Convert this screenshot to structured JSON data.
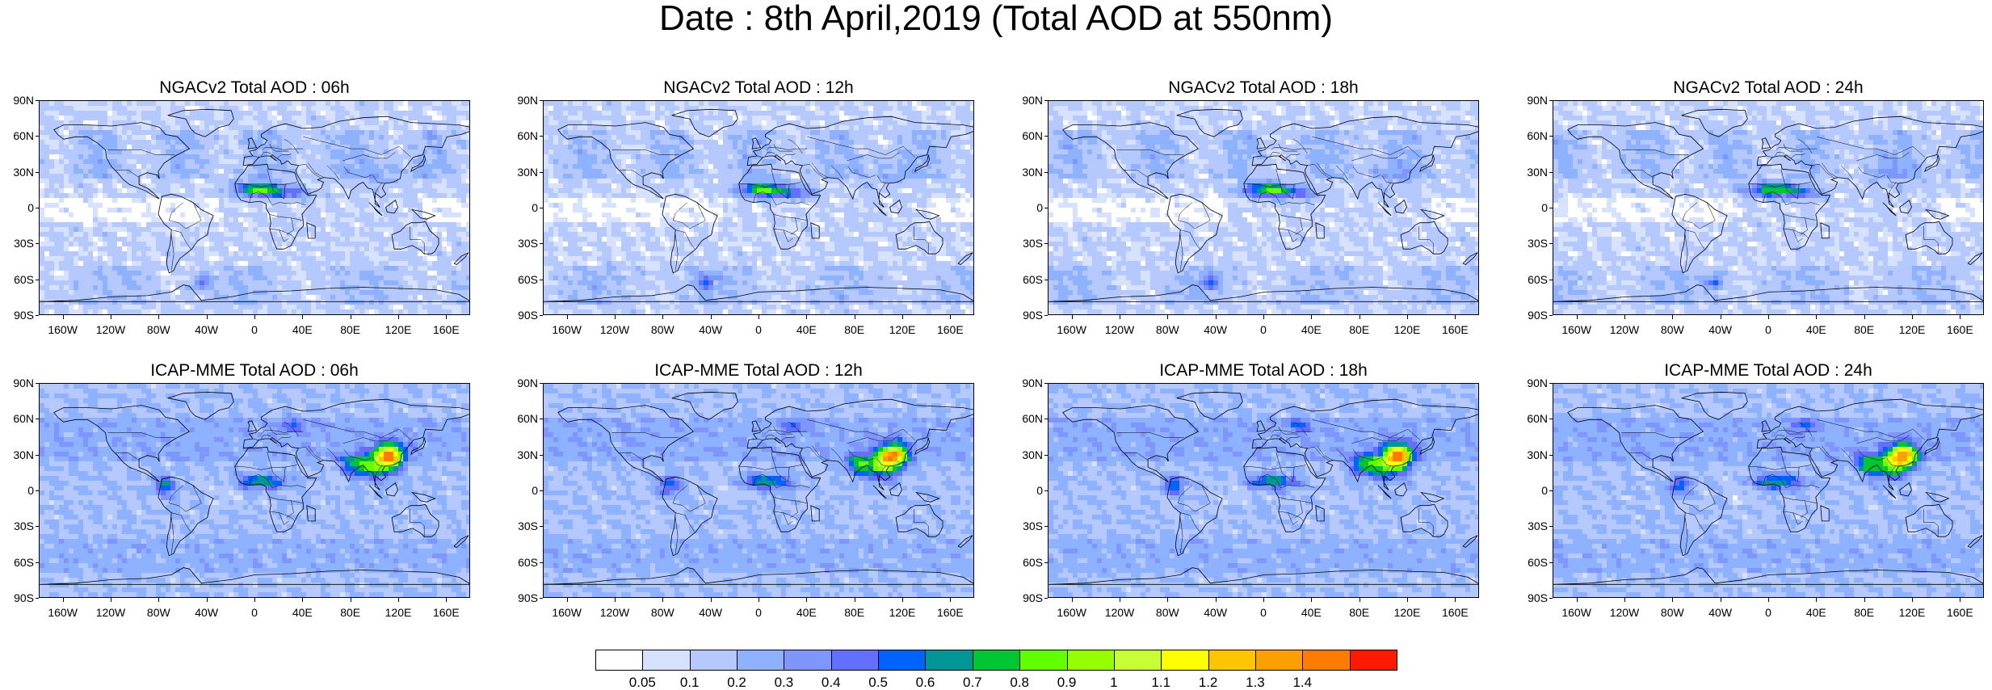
{
  "title": "Date : 8th April,2019 (Total AOD at 550nm)",
  "panels": [
    {
      "id": "ngac-06",
      "title": "NGACv2 Total AOD : 06h",
      "model": "ngac"
    },
    {
      "id": "ngac-12",
      "title": "NGACv2 Total AOD : 12h",
      "model": "ngac"
    },
    {
      "id": "ngac-18",
      "title": "NGACv2 Total AOD : 18h",
      "model": "ngac"
    },
    {
      "id": "ngac-24",
      "title": "NGACv2 Total AOD : 24h",
      "model": "ngac"
    },
    {
      "id": "icap-06",
      "title": "ICAP-MME Total AOD : 06h",
      "model": "icap"
    },
    {
      "id": "icap-12",
      "title": "ICAP-MME Total AOD : 12h",
      "model": "icap"
    },
    {
      "id": "icap-18",
      "title": "ICAP-MME Total AOD : 18h",
      "model": "icap"
    },
    {
      "id": "icap-24",
      "title": "ICAP-MME Total AOD : 24h",
      "model": "icap"
    }
  ],
  "lat_labels": [
    "90N",
    "60N",
    "30N",
    "0",
    "30S",
    "60S",
    "90S"
  ],
  "lon_labels": [
    "160W",
    "120W",
    "80W",
    "40W",
    "0",
    "40E",
    "80E",
    "120E",
    "160E"
  ],
  "colorbar": {
    "labels": [
      "0.05",
      "0.1",
      "0.2",
      "0.3",
      "0.4",
      "0.5",
      "0.6",
      "0.7",
      "0.8",
      "0.9",
      "1",
      "1.1",
      "1.2",
      "1.3",
      "1.4"
    ],
    "colors": [
      "#ffffff",
      "#d6e2ff",
      "#b5c9ff",
      "#8eb2ff",
      "#7f96ff",
      "#6370ff",
      "#0063ff",
      "#009696",
      "#00c633",
      "#63ff00",
      "#96ff00",
      "#c6ff33",
      "#ffff00",
      "#ffc600",
      "#ffa000",
      "#ff7c00",
      "#ff1900"
    ]
  }
}
